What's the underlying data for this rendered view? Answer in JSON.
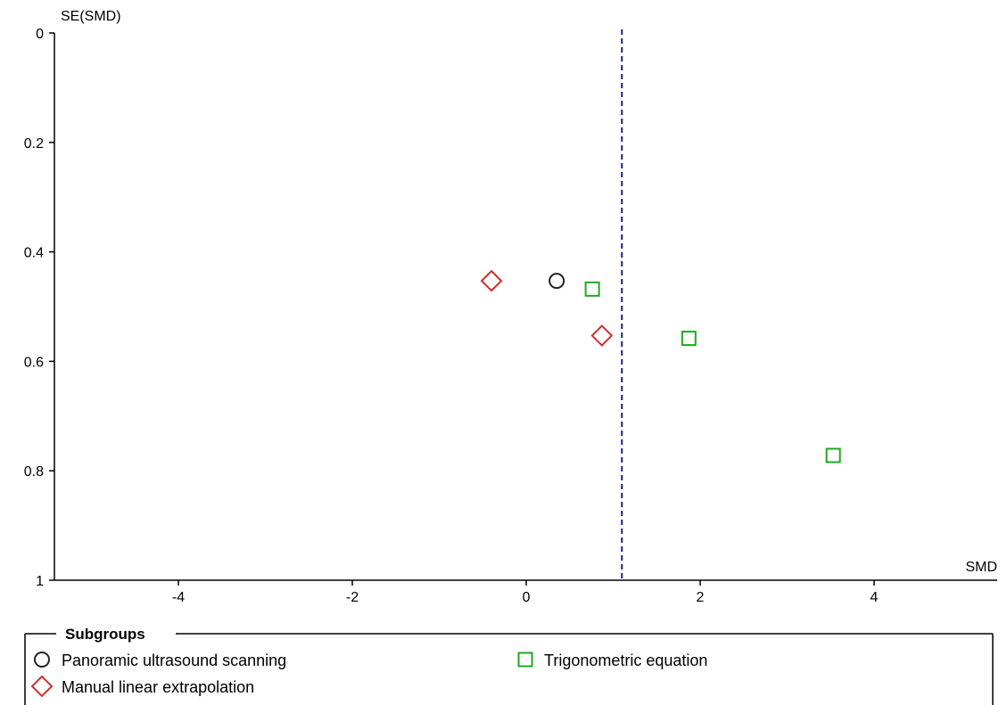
{
  "chart_data": {
    "type": "scatter",
    "title": "",
    "xlabel": "SMD",
    "ylabel": "SE(SMD)",
    "xlim": [
      -5.4,
      5.4
    ],
    "ylim": [
      0,
      1
    ],
    "y_inverted": true,
    "x_ticks": [
      "-4",
      "-2",
      "0",
      "2",
      "4"
    ],
    "y_ticks": [
      "0",
      "0.2",
      "0.4",
      "0.6",
      "0.8",
      "1"
    ],
    "reference_line": {
      "x": 1.1,
      "style": "dashed",
      "color": "#1a237e"
    },
    "grid": false,
    "legend": {
      "title": "Subgroups",
      "placement": "bottom"
    },
    "series": [
      {
        "name": "Panoramic ultrasound scanning",
        "marker": "circle",
        "color": "#222222",
        "points": [
          {
            "x": 0.35,
            "y": 0.453
          }
        ]
      },
      {
        "name": "Trigonometric equation",
        "marker": "square",
        "color": "#1faa1f",
        "points": [
          {
            "x": 0.76,
            "y": 0.468
          },
          {
            "x": 1.87,
            "y": 0.558
          },
          {
            "x": 3.53,
            "y": 0.772
          }
        ]
      },
      {
        "name": "Manual linear extrapolation",
        "marker": "diamond",
        "color": "#d32f2f",
        "points": [
          {
            "x": -0.4,
            "y": 0.453
          },
          {
            "x": 0.87,
            "y": 0.553
          }
        ]
      }
    ]
  }
}
